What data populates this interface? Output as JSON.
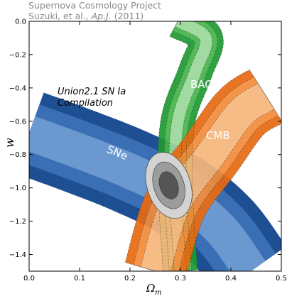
{
  "credit": {
    "line1": "Supernova Cosmology Project",
    "line2_prefix": "Suzuki, et al., ",
    "line2_journal": "Ap.J.",
    "line2_suffix": " (2011)"
  },
  "chart_data": {
    "type": "contour",
    "xlabel": "Ω",
    "xlabel_sub": "m",
    "ylabel": "w",
    "xlim": [
      0.0,
      0.5
    ],
    "ylim": [
      -1.5,
      0.0
    ],
    "xticks": [
      "0.0",
      "0.1",
      "0.2",
      "0.3",
      "0.4",
      "0.5"
    ],
    "yticks": [
      "0.0",
      "−0.2",
      "−0.4",
      "−0.6",
      "−0.8",
      "−1.0",
      "−1.2",
      "−1.4"
    ],
    "xtick_values": [
      0.0,
      0.1,
      0.2,
      0.3,
      0.4,
      0.5
    ],
    "ytick_values": [
      0.0,
      -0.2,
      -0.4,
      -0.6,
      -0.8,
      -1.0,
      -1.2,
      -1.4
    ],
    "annotations": {
      "bao": "BAO",
      "cmb": "CMB",
      "sne": "SNe",
      "union_line1": "Union2.1 SN Ia",
      "union_line2": "Compilation"
    },
    "colors": {
      "bao": [
        "#9bd89b",
        "#44b548",
        "#1f9a33"
      ],
      "cmb": [
        "#f7b77b",
        "#f38c3a",
        "#e76a12"
      ],
      "sne": [
        "#6b98cf",
        "#3b6fb5",
        "#1e4f93"
      ],
      "combined": [
        "#d3d3d3",
        "#9c9c9c",
        "#555555"
      ]
    },
    "contours": {
      "bao": {
        "center": [
          {
            "x": 0.3,
            "y": -1.5
          },
          {
            "x": 0.29,
            "y": -1.0
          },
          {
            "x": 0.295,
            "y": -0.6
          },
          {
            "x": 0.33,
            "y": -0.3
          },
          {
            "x": 0.35,
            "y": -0.1
          },
          {
            "x": 0.295,
            "y": 0.0
          }
        ],
        "half_widths": [
          0.012,
          0.022,
          0.034
        ]
      },
      "cmb": {
        "center": [
          {
            "x": 0.25,
            "y": -1.5
          },
          {
            "x": 0.29,
            "y": -1.1
          },
          {
            "x": 0.36,
            "y": -0.8
          },
          {
            "x": 0.42,
            "y": -0.55
          },
          {
            "x": 0.47,
            "y": -0.45
          }
        ],
        "half_widths": [
          0.03,
          0.045,
          0.062
        ]
      },
      "sne": {
        "center": [
          {
            "x": 0.0,
            "y": -0.67
          },
          {
            "x": 0.1,
            "y": -0.78
          },
          {
            "x": 0.2,
            "y": -0.9
          },
          {
            "x": 0.3,
            "y": -1.05
          },
          {
            "x": 0.38,
            "y": -1.25
          },
          {
            "x": 0.44,
            "y": -1.5
          }
        ],
        "half_widths": [
          0.035,
          0.06,
          0.085
        ]
      },
      "combined": {
        "center": {
          "x": 0.277,
          "y": -0.985
        },
        "sigma_semi_axes": [
          [
            0.018,
            0.085
          ],
          [
            0.03,
            0.145
          ],
          [
            0.043,
            0.205
          ]
        ]
      }
    }
  }
}
